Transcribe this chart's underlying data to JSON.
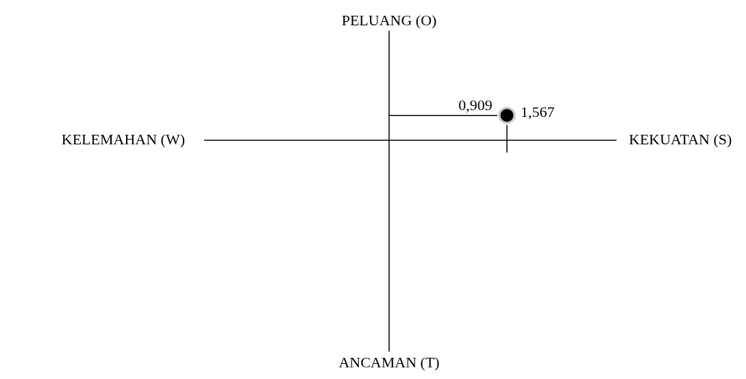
{
  "chart_data": {
    "type": "other",
    "values": [
      0.909
    ],
    "color": "#000000",
    "value_labels": [
      "0,909"
    ],
    "annotations": [
      "KEKUATAN (S)",
      "KELEMAHAN (W)",
      "PELUANG (O)",
      "ANCAMAN (T)",
      "1,567"
    ]
  }
}
